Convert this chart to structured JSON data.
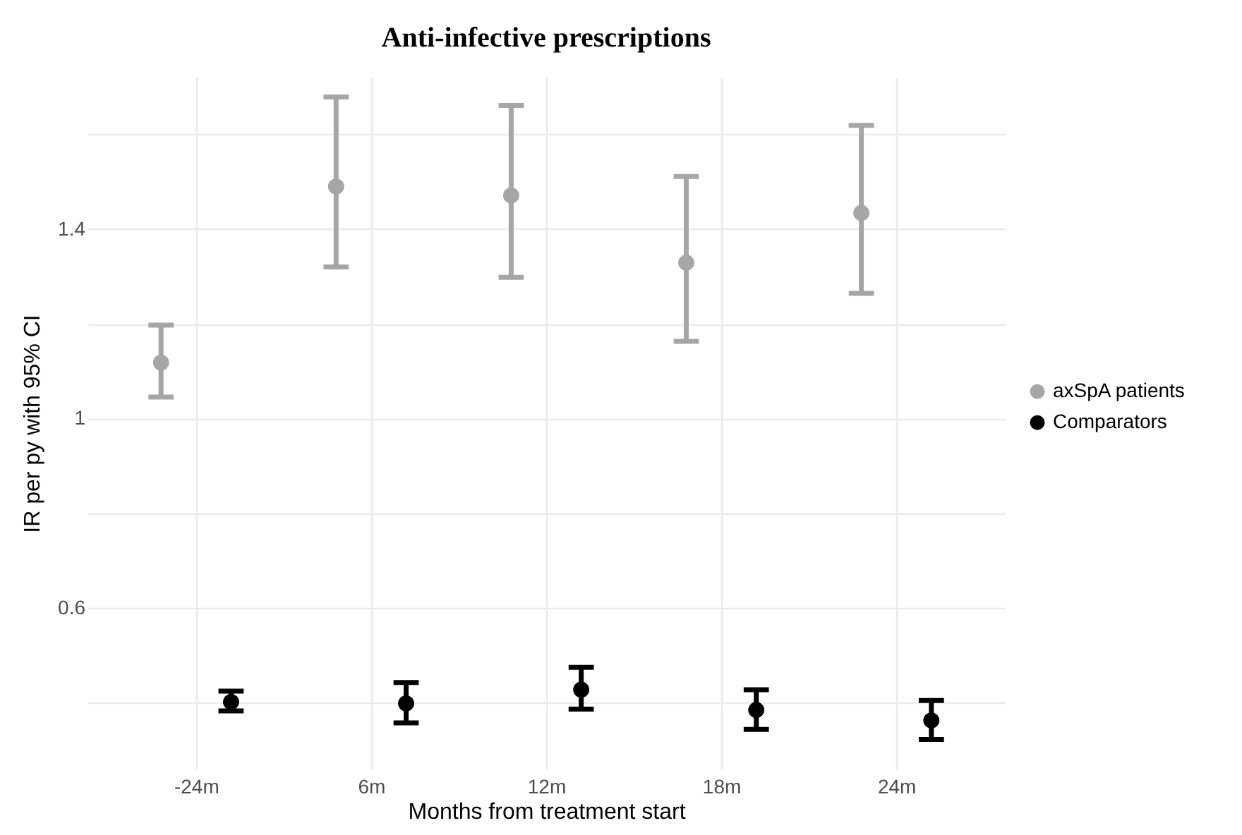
{
  "chart_data": {
    "type": "scatter",
    "title": "Anti-infective prescriptions",
    "xlabel": "Months from treatment start",
    "ylabel": "IR per py with 95% CI",
    "categories": [
      "-24m",
      "6m",
      "12m",
      "18m",
      "24m"
    ],
    "series": [
      {
        "name": "axSpA patients",
        "color": "#a6a6a6",
        "values": [
          1.118,
          1.49,
          1.471,
          1.329,
          1.434
        ],
        "errors": [
          [
            1.045,
            1.197
          ],
          [
            1.32,
            1.679
          ],
          [
            1.298,
            1.661
          ],
          [
            1.163,
            1.511
          ],
          [
            1.264,
            1.619
          ]
        ]
      },
      {
        "name": "Comparators",
        "color": "#000000",
        "values": [
          0.401,
          0.398,
          0.427,
          0.384,
          0.362
        ],
        "errors": [
          [
            0.382,
            0.424
          ],
          [
            0.357,
            0.442
          ],
          [
            0.386,
            0.474
          ],
          [
            0.343,
            0.427
          ],
          [
            0.322,
            0.404
          ]
        ]
      }
    ],
    "ylim": [
      0.26,
      1.72
    ],
    "yticks": [
      {
        "value": 0.4,
        "label": null
      },
      0.6,
      {
        "value": 0.8,
        "label": null
      },
      1.0,
      {
        "value": 1.2,
        "label": null
      },
      1.4,
      {
        "value": 1.6,
        "label": null
      }
    ],
    "grid": true,
    "legend": "right",
    "marker": "circle"
  }
}
